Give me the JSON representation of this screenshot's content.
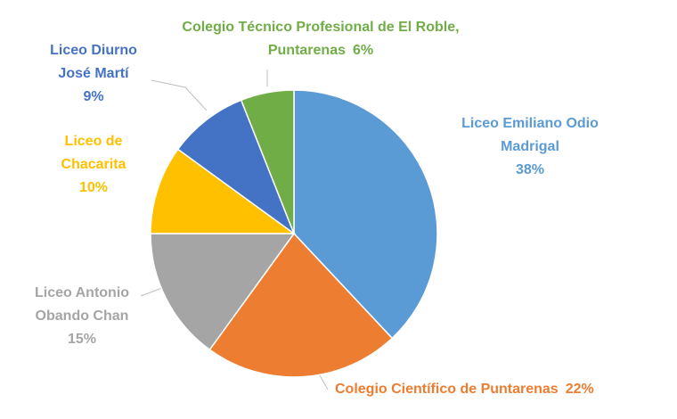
{
  "chart_data": {
    "type": "pie",
    "categories": [
      "Liceo Emiliano Odio Madrigal",
      "Colegio Científico de Puntarenas",
      "Liceo Antonio Obando Chan",
      "Liceo de Chacarita",
      "Liceo Diurno José Martí",
      "Colegio Técnico Profesional de El Roble, Puntarenas"
    ],
    "values": [
      38,
      22,
      15,
      10,
      9,
      6
    ],
    "value_labels": [
      "38%",
      "22%",
      "15%",
      "10%",
      "9%",
      "6%"
    ],
    "colors": [
      "#5b9bd5",
      "#ed7d31",
      "#a5a5a5",
      "#ffc000",
      "#4472c4",
      "#70ad47"
    ]
  }
}
